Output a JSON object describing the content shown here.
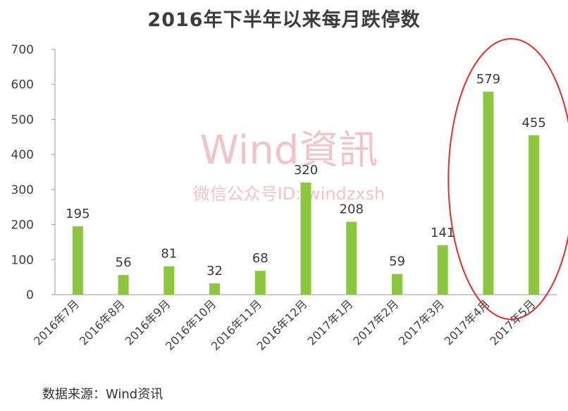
{
  "chart_data": {
    "type": "bar",
    "title": "2016年下半年以来每月跌停数",
    "categories": [
      "2016年7月",
      "2016年8月",
      "2016年9月",
      "2016年10月",
      "2016年11月",
      "2016年12月",
      "2017年1月",
      "2017年2月",
      "2017年3月",
      "2017年4月",
      "2017年5月"
    ],
    "values": [
      195,
      56,
      81,
      32,
      68,
      320,
      208,
      59,
      141,
      579,
      455
    ],
    "ylim": [
      0,
      700
    ],
    "yticks": [
      0,
      100,
      200,
      300,
      400,
      500,
      600,
      700
    ],
    "grid": false,
    "legend": "none",
    "bar_color": "#8dc63f",
    "highlight": {
      "shape": "ellipse",
      "color": "#e0302a",
      "categories": [
        "2017年4月",
        "2017年5月"
      ]
    }
  },
  "watermark": {
    "line1": "Wind資訊",
    "line2": "微信公众号ID: windzxsh",
    "color": "#f2c4c8"
  },
  "source": "数据来源：Wind资讯"
}
